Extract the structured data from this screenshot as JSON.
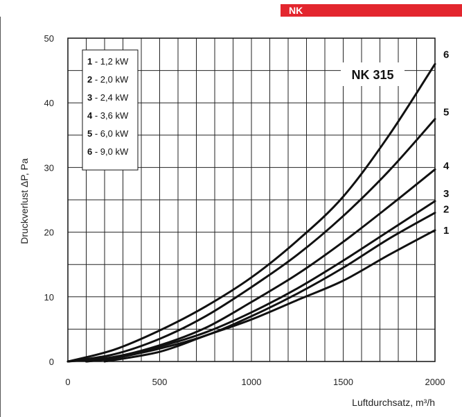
{
  "header": {
    "tab_label": "NK",
    "tab_color": "#e3262e"
  },
  "chart_data": {
    "type": "line",
    "title": "NK 315",
    "xlabel": "Luftdurchsatz, m³/h",
    "ylabel": "Druckverlust  ΔP, Pa",
    "xlim": [
      0,
      2000
    ],
    "ylim": [
      0,
      50
    ],
    "xticks": [
      0,
      500,
      1000,
      1500,
      2000
    ],
    "yticks": [
      0,
      10,
      20,
      30,
      40,
      50
    ],
    "x_tick_labels": [
      "0",
      "500",
      "1000",
      "1500",
      "2000"
    ],
    "y_tick_labels": [
      "0",
      "10",
      "20",
      "30",
      "40",
      "50"
    ],
    "grid": true,
    "legend": [
      {
        "num": "1",
        "text": " - 1,2 kW"
      },
      {
        "num": "2",
        "text": " - 2,0 kW"
      },
      {
        "num": "3",
        "text": " - 2,4 kW"
      },
      {
        "num": "4",
        "text": " - 3,6 kW"
      },
      {
        "num": "5",
        "text": " - 6,0 kW"
      },
      {
        "num": "6",
        "text": " - 9,0 kW"
      }
    ],
    "series": [
      {
        "name": "1",
        "x": [
          200,
          500,
          750,
          1000,
          1250,
          1500,
          1750,
          2000
        ],
        "y": [
          0,
          1.5,
          4,
          6.5,
          9.5,
          12.5,
          16.5,
          20.3
        ]
      },
      {
        "name": "2",
        "x": [
          100,
          250,
          500,
          750,
          1000,
          1250,
          1500,
          1750,
          2000
        ],
        "y": [
          0,
          0.5,
          2,
          4,
          7,
          10.5,
          14.5,
          19,
          23
        ]
      },
      {
        "name": "3",
        "x": [
          100,
          250,
          500,
          750,
          1000,
          1250,
          1500,
          1750,
          2000
        ],
        "y": [
          0,
          0.6,
          2.3,
          4.5,
          7.6,
          11.3,
          15.6,
          20.2,
          24.8
        ]
      },
      {
        "name": "4",
        "x": [
          0,
          250,
          500,
          750,
          1000,
          1250,
          1500,
          1750,
          2000
        ],
        "y": [
          0,
          0.7,
          2.5,
          5.2,
          9.2,
          13.5,
          18.5,
          24,
          29.7
        ]
      },
      {
        "name": "5",
        "x": [
          0,
          250,
          500,
          750,
          1000,
          1250,
          1500,
          1750,
          2000
        ],
        "y": [
          0,
          1.1,
          3.5,
          7,
          11.5,
          16.5,
          22.5,
          29.5,
          37.5
        ]
      },
      {
        "name": "6",
        "x": [
          0,
          250,
          500,
          750,
          1000,
          1250,
          1500,
          1750,
          2000
        ],
        "y": [
          0,
          1.8,
          4.8,
          8.5,
          13,
          18.7,
          25.5,
          35,
          46
        ]
      }
    ]
  }
}
